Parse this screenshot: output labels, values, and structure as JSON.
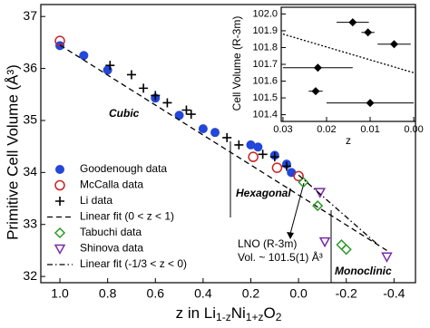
{
  "chart_data": [
    {
      "type": "scatter",
      "xlabel_parts": [
        "z in Li",
        "1-z",
        "Ni",
        "1+z",
        "O",
        "2"
      ],
      "ylabel": "Primitive Cell Volume (Å³)",
      "xlim": [
        1.08,
        -0.49
      ],
      "ylim": [
        31.88,
        37.23
      ],
      "xticks": [
        {
          "value": 1,
          "label": "1.0"
        },
        0.8,
        0.6,
        0.4,
        0.2,
        {
          "value": 0,
          "label": "0.0"
        },
        -0.2,
        -0.4
      ],
      "yticks": [
        32,
        33,
        34,
        35,
        36,
        37
      ],
      "annotations": [
        "Cubic",
        "Hexagonal",
        "Monoclinic",
        "LNO (R-3m)",
        "Vol. ~ 101.5(1) Å³"
      ],
      "series": [
        {
          "name": "Goodenough data",
          "color": "#2347d8",
          "marker": "circle",
          "x": [
            1.0,
            0.9,
            0.8,
            0.6,
            0.5,
            0.4,
            0.35,
            0.2,
            0.17,
            0.1,
            0.05,
            0.03
          ],
          "values": [
            36.44,
            36.25,
            35.97,
            35.43,
            35.1,
            34.84,
            34.77,
            34.53,
            34.49,
            34.33,
            34.16,
            34.0
          ]
        },
        {
          "name": "McCalla data",
          "color": "#cc2222",
          "marker": "open-circle",
          "x": [
            1.0,
            0.19,
            0.09,
            0.0
          ],
          "values": [
            36.53,
            34.3,
            34.09,
            33.93
          ]
        },
        {
          "name": "Li data",
          "color": "#000000",
          "marker": "plus",
          "x": [
            0.79,
            0.7,
            0.65,
            0.6,
            0.55,
            0.47,
            0.45,
            0.3,
            0.25,
            0.15,
            0.1,
            0.05
          ],
          "values": [
            36.06,
            35.88,
            35.62,
            35.48,
            35.34,
            35.2,
            35.12,
            34.67,
            34.53,
            34.35,
            34.3,
            34.12
          ]
        },
        {
          "name": "Linear fit (0 < z < 1)",
          "color": "#000000",
          "marker": "dash",
          "x": [
            1.0,
            -0.37
          ],
          "values": [
            36.45,
            32.5
          ]
        },
        {
          "name": "Tabuchi data",
          "color": "#2a9a2a",
          "marker": "open-diamond",
          "x": [
            -0.02,
            -0.08,
            -0.18,
            -0.2
          ],
          "values": [
            33.81,
            33.36,
            32.61,
            32.52
          ]
        },
        {
          "name": "Shinova data",
          "color": "#7a2aa8",
          "marker": "open-triangle",
          "x": [
            -0.09,
            -0.11,
            -0.37
          ],
          "values": [
            33.62,
            32.67,
            32.38
          ]
        },
        {
          "name": "Linear fit (-1/3 < z < 0)",
          "color": "#000000",
          "marker": "dashdot",
          "x": [
            0.0,
            -0.33
          ],
          "values": [
            33.95,
            32.62
          ]
        }
      ]
    },
    {
      "type": "errorbar",
      "xlabel": "z",
      "ylabel": "Cell Volume (R-3m)",
      "xlim": [
        0.0304,
        -0.0004
      ],
      "ylim": [
        101.36,
        102.04
      ],
      "xticks": [
        0.03,
        0.02,
        0.01,
        {
          "value": 0,
          "label": "0.00"
        }
      ],
      "yticks": [
        101.4,
        101.5,
        101.6,
        101.7,
        101.8,
        101.9,
        {
          "value": 102,
          "label": "102.0"
        }
      ],
      "series": [
        {
          "color": "#000000",
          "marker": "diamond",
          "x": [
            0.014,
            0.0105,
            0.0045,
            0.022,
            0.0225,
            0.01
          ],
          "xerr": [
            0.0037,
            0.0015,
            0.0038,
            0.008,
            0.0016,
            0.01
          ],
          "values": [
            101.95,
            101.89,
            101.82,
            101.68,
            101.54,
            101.47
          ]
        },
        {
          "color": "#000000",
          "marker": "dot",
          "x": [
            0.03,
            0.0
          ],
          "values": [
            101.88,
            101.65
          ]
        }
      ]
    }
  ]
}
